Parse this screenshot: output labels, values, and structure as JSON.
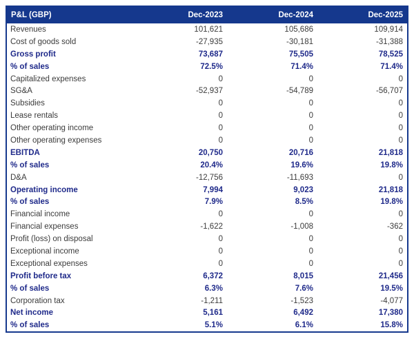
{
  "table": {
    "currency_note": "P&L (GBP)",
    "header": {
      "label": "P&L (GBP)",
      "columns": [
        "Dec-2023",
        "Dec-2024",
        "Dec-2025"
      ]
    },
    "rows": [
      {
        "label": "Revenues",
        "values": [
          "101,621",
          "105,686",
          "109,914"
        ],
        "bold": false
      },
      {
        "label": "Cost of goods sold",
        "values": [
          "-27,935",
          "-30,181",
          "-31,388"
        ],
        "bold": false
      },
      {
        "label": "Gross profit",
        "values": [
          "73,687",
          "75,505",
          "78,525"
        ],
        "bold": true
      },
      {
        "label": "% of sales",
        "values": [
          "72.5%",
          "71.4%",
          "71.4%"
        ],
        "bold": true
      },
      {
        "label": "Capitalized expenses",
        "values": [
          "0",
          "0",
          "0"
        ],
        "bold": false
      },
      {
        "label": "SG&A",
        "values": [
          "-52,937",
          "-54,789",
          "-56,707"
        ],
        "bold": false
      },
      {
        "label": "Subsidies",
        "values": [
          "0",
          "0",
          "0"
        ],
        "bold": false
      },
      {
        "label": "Lease rentals",
        "values": [
          "0",
          "0",
          "0"
        ],
        "bold": false
      },
      {
        "label": "Other operating income",
        "values": [
          "0",
          "0",
          "0"
        ],
        "bold": false
      },
      {
        "label": "Other operating expenses",
        "values": [
          "0",
          "0",
          "0"
        ],
        "bold": false
      },
      {
        "label": "EBITDA",
        "values": [
          "20,750",
          "20,716",
          "21,818"
        ],
        "bold": true
      },
      {
        "label": "% of sales",
        "values": [
          "20.4%",
          "19.6%",
          "19.8%"
        ],
        "bold": true
      },
      {
        "label": "D&A",
        "values": [
          "-12,756",
          "-11,693",
          "0"
        ],
        "bold": false
      },
      {
        "label": "Operating income",
        "values": [
          "7,994",
          "9,023",
          "21,818"
        ],
        "bold": true
      },
      {
        "label": "% of sales",
        "values": [
          "7.9%",
          "8.5%",
          "19.8%"
        ],
        "bold": true
      },
      {
        "label": "Financial income",
        "values": [
          "0",
          "0",
          "0"
        ],
        "bold": false
      },
      {
        "label": "Financial expenses",
        "values": [
          "-1,622",
          "-1,008",
          "-362"
        ],
        "bold": false
      },
      {
        "label": "Profit (loss) on disposal",
        "values": [
          "0",
          "0",
          "0"
        ],
        "bold": false
      },
      {
        "label": "Exceptional income",
        "values": [
          "0",
          "0",
          "0"
        ],
        "bold": false
      },
      {
        "label": "Exceptional expenses",
        "values": [
          "0",
          "0",
          "0"
        ],
        "bold": false
      },
      {
        "label": "Profit before tax",
        "values": [
          "6,372",
          "8,015",
          "21,456"
        ],
        "bold": true
      },
      {
        "label": "% of sales",
        "values": [
          "6.3%",
          "7.6%",
          "19.5%"
        ],
        "bold": true
      },
      {
        "label": "Corporation tax",
        "values": [
          "-1,211",
          "-1,523",
          "-4,077"
        ],
        "bold": false
      },
      {
        "label": "Net income",
        "values": [
          "5,161",
          "6,492",
          "17,380"
        ],
        "bold": true
      },
      {
        "label": "% of sales",
        "values": [
          "5.1%",
          "6.1%",
          "15.8%"
        ],
        "bold": true
      }
    ]
  },
  "colors": {
    "header_background": "#15388d",
    "border": "#15388d",
    "bold_text": "#1f2a8a",
    "regular_text": "#3b3b3b",
    "background": "#ffffff"
  }
}
